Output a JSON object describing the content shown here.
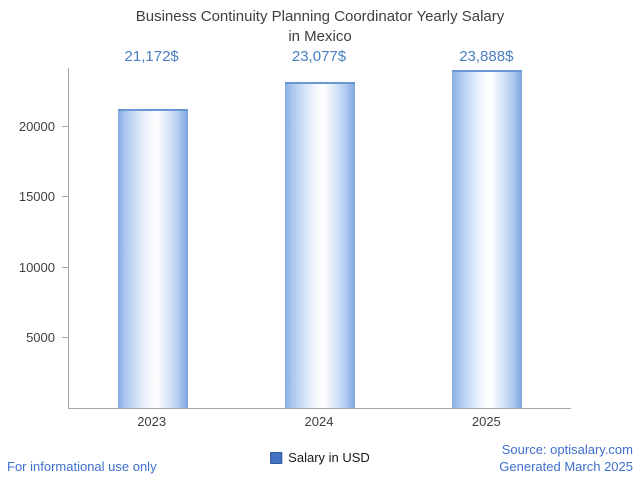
{
  "header": {
    "title_line1": "Business Continuity Planning Coordinator Yearly Salary",
    "title_line2": "in Mexico"
  },
  "chart_data": {
    "type": "bar",
    "title": "Business Continuity Planning Coordinator Yearly Salary in Mexico",
    "categories": [
      "2023",
      "2024",
      "2025"
    ],
    "values": [
      21172,
      23077,
      23888
    ],
    "value_labels": [
      "21,172$",
      "23,077$",
      "23,888$"
    ],
    "xlabel": "",
    "ylabel": "",
    "ylim": [
      0,
      24200
    ],
    "yticks": [
      5000,
      10000,
      15000,
      20000
    ],
    "grid": false,
    "legend_position": "bottom",
    "legend": [
      "Salary in USD"
    ],
    "bar_color": "#4472c4",
    "bar_gradient_edges": "#86abe4",
    "bar_gradient_center": "#ffffff"
  },
  "legend": {
    "label": "Salary in USD",
    "swatch_color": "#4472c4"
  },
  "footer": {
    "left": "For informational use only",
    "source": "Source: optisalary.com",
    "generated": "Generated March 2025"
  },
  "colors": {
    "value_label": "#4a7ebf",
    "footer_text": "#3e6fd0",
    "axis": "#a6a6a6",
    "title_text": "#3f3f3f"
  }
}
